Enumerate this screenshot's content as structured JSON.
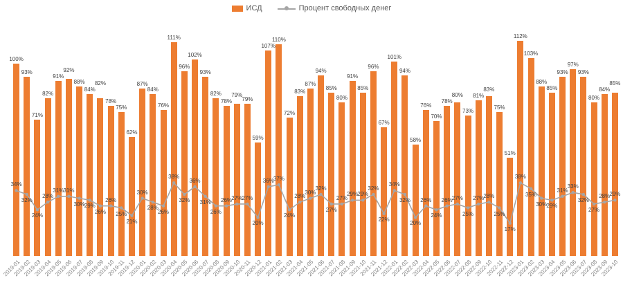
{
  "legend": {
    "bar_series_label": "ИСД",
    "line_series_label": "Процент свободных денег"
  },
  "colors": {
    "bar": "#ED7D31",
    "line": "#A5A5A5",
    "data_label": "#404040",
    "axis_label": "#808080"
  },
  "chart_data": {
    "type": "bar",
    "combo": "bar+line",
    "title": "",
    "xlabel": "",
    "ylabel": "",
    "ylim": [
      0,
      120
    ],
    "grid": false,
    "legend_position": "top",
    "value_suffix": "%",
    "categories": [
      "2019-01",
      "2019-02",
      "2019-03",
      "2019-04",
      "2019-05",
      "2019-06",
      "2019-07",
      "2019-08",
      "2019-09",
      "2019-10",
      "2019-11",
      "2019-12",
      "2020-01",
      "2020-02",
      "2020-03",
      "2020-04",
      "2020-05",
      "2020-06",
      "2020-07",
      "2020-08",
      "2020-09",
      "2020-10",
      "2020-11",
      "2020-12",
      "2021-01",
      "2021-02",
      "2021-03",
      "2021-04",
      "2021-05",
      "2021-06",
      "2021-07",
      "2021-08",
      "2021-09",
      "2021-10",
      "2021-11",
      "2021-12",
      "2022-01",
      "2022-02",
      "2022-03",
      "2022-04",
      "2022-05",
      "2022-06",
      "2022-07",
      "2022-08",
      "2022-09",
      "2022-10",
      "2022-11",
      "2022-12",
      "2023-01",
      "2023-02",
      "2023-03",
      "2023-04",
      "2023-05",
      "2023-06",
      "2023-07",
      "2023-08",
      "2023-09",
      "2023-10"
    ],
    "series": [
      {
        "name": "ИСД",
        "kind": "bar",
        "color": "#ED7D31",
        "values": [
          100,
          93,
          71,
          82,
          91,
          92,
          88,
          84,
          82,
          78,
          75,
          62,
          87,
          84,
          76,
          111,
          96,
          102,
          93,
          82,
          78,
          79,
          79,
          59,
          107,
          110,
          72,
          83,
          87,
          94,
          85,
          80,
          91,
          85,
          96,
          67,
          101,
          94,
          58,
          76,
          70,
          78,
          80,
          73,
          81,
          83,
          75,
          51,
          112,
          103,
          88,
          85,
          93,
          97,
          93,
          80,
          84,
          85
        ]
      },
      {
        "name": "Процент свободных денег",
        "kind": "line",
        "color": "#A5A5A5",
        "values": [
          34,
          32,
          24,
          28,
          31,
          31,
          30,
          29,
          26,
          26,
          25,
          21,
          30,
          28,
          26,
          38,
          32,
          36,
          31,
          26,
          26,
          27,
          27,
          20,
          36,
          37,
          24,
          28,
          30,
          32,
          27,
          27,
          29,
          29,
          32,
          22,
          34,
          32,
          20,
          26,
          24,
          26,
          27,
          25,
          27,
          28,
          25,
          17,
          38,
          35,
          30,
          29,
          31,
          33,
          32,
          27,
          28,
          29
        ]
      }
    ]
  }
}
